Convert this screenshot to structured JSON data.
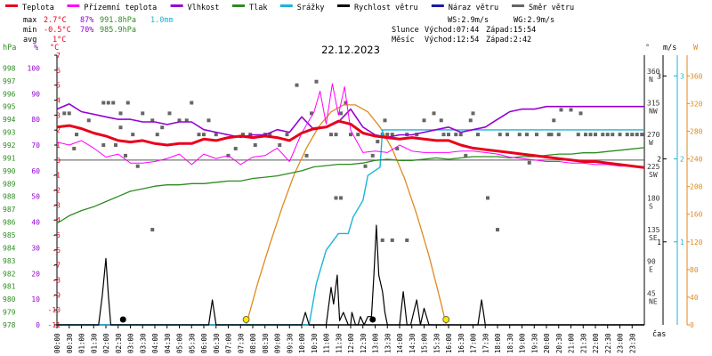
{
  "legend": [
    {
      "label": "Teplota",
      "color": "#e8001c"
    },
    {
      "label": "Přízemní teplota",
      "color": "#ff00ff"
    },
    {
      "label": "Vlhkost",
      "color": "#9400d3"
    },
    {
      "label": "Tlak",
      "color": "#2e8b22"
    },
    {
      "label": "Srážky",
      "color": "#1bb4d8"
    },
    {
      "label": "Rychlost větru",
      "color": "#000000"
    },
    {
      "label": "Náraz větru",
      "color": "#1a1aa6"
    },
    {
      "label": "Směr větru",
      "color": "#666666"
    }
  ],
  "stats": {
    "max_label": "max",
    "max_temp": "2.7°C",
    "max_hum": "87%",
    "max_press": "991.8hPa",
    "max_rain": "1.0mm",
    "min_label": "min",
    "min_temp": "-0.5°C",
    "min_hum": "70%",
    "min_press": "985.9hPa",
    "avg_label": "avg",
    "avg_temp": "1°C"
  },
  "info": {
    "ws": "WS:2.9m/s",
    "wg": "WG:2.9m/s",
    "sun_label": "Slunce",
    "sun_rise": "Východ:07:44",
    "sun_set": "Západ:15:54",
    "moon_label": "Měsíc",
    "moon_rise": "Východ:12:54",
    "moon_set": "Západ:2:42"
  },
  "date": "22.12.2023",
  "axis_units": {
    "hpa": "hPa",
    "pct": "%",
    "temp": "°C",
    "dir": "°",
    "ms": "m/s",
    "w": "W",
    "cas": "čas"
  },
  "axes": {
    "hpa_ticks": [
      "998",
      "997",
      "996",
      "995",
      "994",
      "993",
      "992",
      "991",
      "990",
      "989",
      "988",
      "987",
      "986",
      "985",
      "984",
      "983",
      "982",
      "981",
      "980",
      "979",
      "978"
    ],
    "pct_ticks": [
      "100",
      "90",
      "80",
      "70",
      "60",
      "50",
      "40",
      "30",
      "20",
      "10",
      "0"
    ],
    "temp_ticks": [
      "7",
      "6",
      "5",
      "4",
      "3",
      "2",
      "1",
      "0",
      "-1",
      "-2",
      "-3",
      "-4",
      "-5",
      "-6",
      "-7",
      "-8",
      "-9",
      "-10",
      "-11"
    ],
    "dir_ticks": [
      {
        "deg": "360",
        "name": "N"
      },
      {
        "deg": "315",
        "name": "NW"
      },
      {
        "deg": "270",
        "name": "W"
      },
      {
        "deg": "225",
        "name": "SW"
      },
      {
        "deg": "180",
        "name": "S"
      },
      {
        "deg": "135",
        "name": "SE"
      },
      {
        "deg": "90",
        "name": "E"
      },
      {
        "deg": "45",
        "name": "NE"
      }
    ],
    "ms_left_ticks": [
      "3",
      "2",
      "1"
    ],
    "ms_right_ticks": [
      "3",
      "2",
      "1"
    ],
    "w_ticks": [
      "360",
      "320",
      "280",
      "240",
      "200",
      "160",
      "120",
      "80",
      "40",
      "0"
    ],
    "time_ticks": [
      "00:00",
      "00:30",
      "01:00",
      "01:30",
      "02:00",
      "02:30",
      "03:00",
      "03:30",
      "04:00",
      "04:30",
      "05:00",
      "05:30",
      "06:00",
      "06:30",
      "07:00",
      "07:30",
      "08:00",
      "08:30",
      "09:00",
      "09:30",
      "10:00",
      "10:30",
      "11:00",
      "11:30",
      "12:00",
      "12:30",
      "13:00",
      "13:30",
      "14:00",
      "14:30",
      "15:00",
      "15:30",
      "16:00",
      "16:30",
      "17:00",
      "17:30",
      "18:00",
      "18:30",
      "19:00",
      "19:30",
      "20:00",
      "20:30",
      "21:00",
      "21:30",
      "22:00",
      "22:30",
      "23:00",
      "23:30"
    ]
  },
  "chart_data": {
    "type": "line",
    "title": "22.12.2023",
    "x_range": [
      0,
      24
    ],
    "temp_range": [
      -11,
      7
    ],
    "hpa_range": [
      978,
      999
    ],
    "pct_range": [
      0,
      105
    ],
    "dir_range": [
      0,
      382.5
    ],
    "wind_range": [
      0,
      3.25
    ],
    "rain_range": [
      0,
      3.25
    ],
    "w_range": [
      0,
      390
    ],
    "series": [
      {
        "name": "Teplota",
        "color": "#e8001c",
        "x": [
          0,
          0.5,
          1,
          1.5,
          2,
          2.5,
          3,
          3.5,
          4,
          4.5,
          5,
          5.5,
          6,
          6.5,
          7,
          7.5,
          8,
          8.5,
          9,
          9.5,
          10,
          10.5,
          11,
          11.5,
          12,
          12.5,
          13,
          13.5,
          14,
          14.5,
          15,
          15.5,
          16,
          16.5,
          17,
          17.5,
          18,
          18.5,
          19,
          19.5,
          20,
          20.5,
          21,
          21.5,
          22,
          22.5,
          23,
          23.5,
          24
        ],
        "y": [
          2.2,
          2.3,
          2.1,
          1.8,
          1.6,
          1.3,
          1.2,
          1.3,
          1.1,
          1.0,
          1.1,
          1.1,
          1.4,
          1.3,
          1.5,
          1.6,
          1.5,
          1.6,
          1.5,
          1.3,
          1.8,
          2.1,
          2.2,
          2.6,
          2.4,
          1.8,
          1.6,
          1.5,
          1.4,
          1.5,
          1.4,
          1.3,
          1.3,
          1.0,
          0.8,
          0.7,
          0.6,
          0.5,
          0.4,
          0.3,
          0.2,
          0.1,
          0.0,
          -0.1,
          -0.1,
          -0.2,
          -0.3,
          -0.4,
          -0.5
        ]
      },
      {
        "name": "Přízemní teplota",
        "color": "#ff00ff",
        "x": [
          0,
          0.5,
          1,
          1.5,
          2,
          2.5,
          3,
          3.5,
          4,
          4.5,
          5,
          5.5,
          6,
          6.5,
          7,
          7.5,
          8,
          8.5,
          9,
          9.5,
          10,
          10.5,
          10.75,
          11,
          11.25,
          11.5,
          11.75,
          12,
          12.5,
          13,
          13.5,
          14,
          14.5,
          15,
          15.5,
          16,
          16.5,
          17,
          17.5,
          18,
          18.5,
          19,
          19.5,
          20,
          20.5,
          21,
          21.5,
          22,
          22.5,
          23,
          23.5,
          24
        ],
        "y": [
          1.2,
          1.0,
          1.3,
          0.8,
          0.2,
          0.4,
          -0.2,
          -0.2,
          -0.1,
          0.1,
          0.4,
          -0.3,
          0.4,
          0.1,
          0.3,
          -0.3,
          0.2,
          0.3,
          0.8,
          -0.1,
          1.8,
          3.2,
          4.6,
          2.4,
          5.1,
          3.0,
          4.9,
          2.0,
          0.5,
          0.6,
          0.5,
          1.0,
          0.6,
          0.5,
          0.5,
          0.5,
          0.6,
          0.6,
          0.5,
          0.4,
          0.2,
          0.1,
          0.0,
          -0.1,
          -0.1,
          -0.2,
          -0.2,
          -0.3,
          -0.3,
          -0.4,
          -0.4,
          -0.5
        ]
      },
      {
        "name": "Vlhkost",
        "color": "#9400d3",
        "x": [
          0,
          0.5,
          1,
          1.5,
          2,
          2.5,
          3,
          3.5,
          4,
          4.5,
          5,
          5.5,
          6,
          6.5,
          7,
          7.5,
          8,
          8.5,
          9,
          9.5,
          10,
          10.5,
          11,
          11.5,
          12,
          12.5,
          13,
          13.5,
          14,
          14.5,
          15,
          15.5,
          16,
          16.5,
          17,
          17.5,
          18,
          18.5,
          19,
          19.5,
          20,
          20.5,
          21,
          21.5,
          22,
          22.5,
          23,
          23.5,
          24
        ],
        "y": [
          84,
          86,
          83,
          82,
          81,
          80,
          80,
          79,
          79,
          78,
          79,
          79,
          76,
          75,
          74,
          73,
          74,
          74,
          76,
          75,
          81,
          76,
          77,
          79,
          84,
          77,
          74,
          73,
          74,
          74,
          75,
          76,
          77,
          75,
          76,
          77,
          80,
          83,
          84,
          84,
          85,
          85,
          85,
          85,
          85,
          85,
          85,
          85,
          85
        ]
      },
      {
        "name": "Tlak",
        "color": "#2e8b22",
        "x": [
          0,
          0.5,
          1,
          1.5,
          2,
          2.5,
          3,
          3.5,
          4,
          4.5,
          5,
          5.5,
          6,
          6.5,
          7,
          7.5,
          8,
          8.5,
          9,
          9.5,
          10,
          10.5,
          11,
          11.5,
          12,
          12.5,
          13,
          13.5,
          14,
          14.5,
          15,
          15.5,
          16,
          16.5,
          17,
          17.5,
          18,
          18.5,
          19,
          19.5,
          20,
          20.5,
          21,
          21.5,
          22,
          22.5,
          23,
          23.5,
          24
        ],
        "y": [
          985.9,
          986.5,
          986.9,
          987.2,
          987.6,
          988.0,
          988.4,
          988.6,
          988.8,
          988.9,
          988.9,
          989.0,
          989.0,
          989.1,
          989.2,
          989.2,
          989.4,
          989.5,
          989.6,
          989.8,
          990.0,
          990.3,
          990.4,
          990.5,
          990.5,
          990.6,
          990.8,
          990.9,
          990.8,
          990.8,
          990.9,
          991.0,
          990.9,
          991.0,
          991.1,
          991.1,
          991.1,
          991.0,
          991.1,
          991.1,
          991.2,
          991.3,
          991.3,
          991.4,
          991.4,
          991.5,
          991.6,
          991.7,
          991.8
        ]
      },
      {
        "name": "Srážky",
        "color": "#1bb4d8",
        "x": [
          0,
          10.3,
          10.6,
          11,
          11.5,
          11.9,
          12.1,
          12.5,
          12.7,
          13.2,
          13.3,
          24
        ],
        "y": [
          0,
          0,
          0.5,
          0.9,
          1.1,
          1.1,
          1.3,
          1.5,
          1.8,
          1.9,
          2.35,
          2.35
        ]
      },
      {
        "name": "Rychlost větru",
        "color": "#000000",
        "x": [
          0,
          1.7,
          1.85,
          2.0,
          2.1,
          2.2,
          2.4,
          6.2,
          6.35,
          6.5,
          6.7,
          10.0,
          10.15,
          10.3,
          10.5,
          11.0,
          11.2,
          11.3,
          11.45,
          11.55,
          11.7,
          11.9,
          12.0,
          12.05,
          12.2,
          12.3,
          12.4,
          12.55,
          12.7,
          12.85,
          12.95,
          13.05,
          13.15,
          13.3,
          13.4,
          13.5,
          13.6,
          14.0,
          14.15,
          14.3,
          14.45,
          14.7,
          14.85,
          15.0,
          15.2,
          17.2,
          17.35,
          17.5,
          17.7,
          24
        ],
        "y": [
          0,
          0,
          0.35,
          0.8,
          0.35,
          0,
          0,
          0,
          0.3,
          0,
          0,
          0,
          0.15,
          0,
          0,
          0,
          0.45,
          0.25,
          0.6,
          0.05,
          0.15,
          0,
          0,
          0.15,
          0,
          0,
          0.1,
          0,
          0.1,
          0.1,
          0.6,
          1.2,
          0.6,
          0.4,
          0.15,
          0,
          0,
          0,
          0.4,
          0,
          0,
          0.3,
          0,
          0.2,
          0,
          0,
          0.3,
          0,
          0,
          0
        ]
      },
      {
        "name": "Směr větru",
        "color": "#666666",
        "points": [
          [
            0.3,
            300
          ],
          [
            0.5,
            300
          ],
          [
            0.7,
            250
          ],
          [
            0.8,
            270
          ],
          [
            1.3,
            290
          ],
          [
            1.9,
            255
          ],
          [
            1.9,
            315
          ],
          [
            2.1,
            315
          ],
          [
            2.3,
            315
          ],
          [
            2.4,
            255
          ],
          [
            2.6,
            300
          ],
          [
            2.9,
            315
          ],
          [
            3.1,
            270
          ],
          [
            3.3,
            225
          ],
          [
            3.5,
            300
          ],
          [
            3.9,
            290
          ],
          [
            4.1,
            270
          ],
          [
            4.3,
            280
          ],
          [
            4.6,
            300
          ],
          [
            5.0,
            290
          ],
          [
            5.3,
            290
          ],
          [
            5.5,
            315
          ],
          [
            5.8,
            270
          ],
          [
            6.0,
            270
          ],
          [
            6.2,
            290
          ],
          [
            6.5,
            270
          ],
          [
            7.0,
            240
          ],
          [
            7.3,
            250
          ],
          [
            7.6,
            270
          ],
          [
            7.9,
            270
          ],
          [
            8.1,
            255
          ],
          [
            8.5,
            270
          ],
          [
            8.7,
            270
          ],
          [
            9.1,
            255
          ],
          [
            9.4,
            270
          ],
          [
            9.8,
            340
          ],
          [
            10.2,
            240
          ],
          [
            10.4,
            300
          ],
          [
            11.2,
            270
          ],
          [
            11.4,
            270
          ],
          [
            11.6,
            300
          ],
          [
            11.8,
            315
          ],
          [
            12.0,
            270
          ],
          [
            12.3,
            270
          ],
          [
            12.6,
            225
          ],
          [
            12.9,
            240
          ],
          [
            13.1,
            260
          ],
          [
            13.3,
            270
          ],
          [
            13.5,
            270
          ],
          [
            13.7,
            270
          ],
          [
            13.9,
            250
          ],
          [
            14.3,
            270
          ],
          [
            14.7,
            270
          ],
          [
            15.0,
            290
          ],
          [
            15.4,
            300
          ],
          [
            15.7,
            290
          ],
          [
            15.8,
            270
          ],
          [
            16.0,
            270
          ],
          [
            16.3,
            270
          ],
          [
            16.5,
            270
          ],
          [
            16.7,
            240
          ],
          [
            17.0,
            300
          ],
          [
            17.2,
            270
          ],
          [
            17.6,
            180
          ],
          [
            18.1,
            270
          ],
          [
            18.4,
            270
          ],
          [
            18.9,
            270
          ],
          [
            19.2,
            270
          ],
          [
            19.6,
            270
          ],
          [
            20.1,
            270
          ],
          [
            20.2,
            270
          ],
          [
            20.5,
            270
          ],
          [
            20.6,
            305
          ],
          [
            21.0,
            305
          ],
          [
            21.3,
            270
          ],
          [
            21.6,
            270
          ],
          [
            21.8,
            270
          ],
          [
            22.0,
            270
          ],
          [
            22.3,
            270
          ],
          [
            22.5,
            270
          ],
          [
            22.7,
            270
          ],
          [
            23.0,
            270
          ],
          [
            23.3,
            270
          ],
          [
            23.5,
            270
          ],
          [
            23.7,
            270
          ],
          [
            23.9,
            270
          ],
          [
            3.9,
            135
          ],
          [
            2.6,
            280
          ],
          [
            2.8,
            240
          ],
          [
            10.6,
            345
          ],
          [
            11.4,
            180
          ],
          [
            11.6,
            180
          ],
          [
            13.3,
            120
          ],
          [
            13.4,
            290
          ],
          [
            13.7,
            120
          ],
          [
            14.3,
            120
          ],
          [
            16.9,
            290
          ],
          [
            18.0,
            135
          ],
          [
            19.3,
            230
          ],
          [
            20.3,
            290
          ],
          [
            21.4,
            300
          ]
        ]
      },
      {
        "name": "Sluneční záření",
        "color": "#e08a1e",
        "x": [
          7.73,
          8.2,
          8.7,
          9.2,
          9.7,
          10.2,
          10.7,
          11.2,
          11.7,
          12.2,
          12.7,
          13.2,
          13.7,
          14.2,
          14.7,
          15.2,
          15.7,
          15.9
        ],
        "y": [
          0,
          60,
          117,
          170,
          218,
          256,
          287,
          308,
          318,
          318,
          308,
          286,
          254,
          212,
          160,
          100,
          30,
          0
        ]
      }
    ],
    "sun_markers": [
      7.73,
      15.9
    ],
    "moon_markers": [
      2.7,
      12.9
    ]
  }
}
